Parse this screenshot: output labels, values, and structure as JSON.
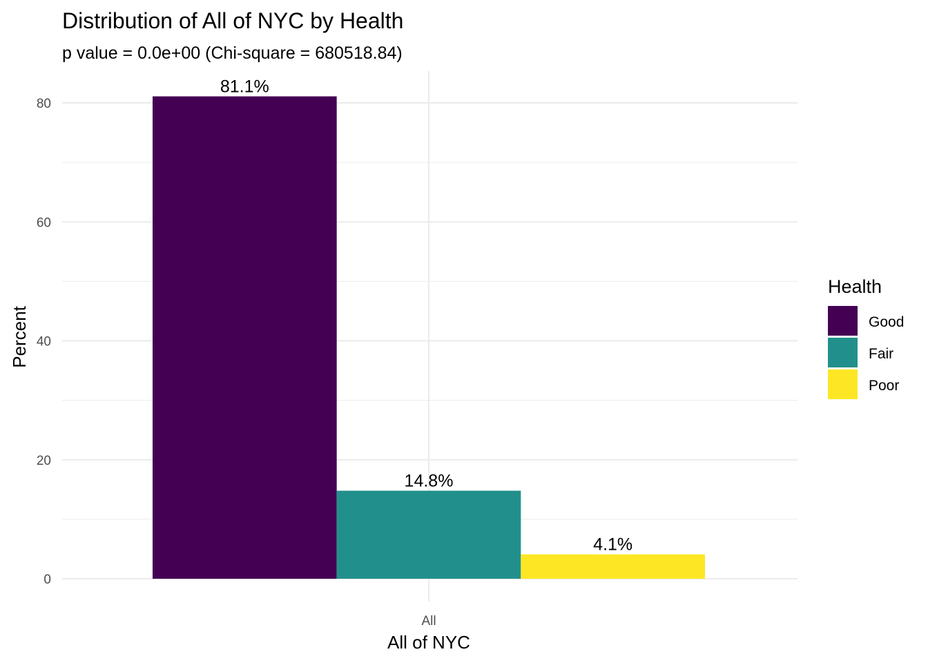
{
  "chart_data": {
    "type": "bar",
    "title": "Distribution of All of NYC by Health",
    "subtitle": "p value = 0.0e+00 (Chi-square = 680518.84)",
    "xlabel": "All of NYC",
    "ylabel": "Percent",
    "categories": [
      "All"
    ],
    "series": [
      {
        "name": "Good",
        "values": [
          81.1
        ],
        "label": "81.1%",
        "color": "#440154"
      },
      {
        "name": "Fair",
        "values": [
          14.8
        ],
        "label": "14.8%",
        "color": "#21908C"
      },
      {
        "name": "Poor",
        "values": [
          4.1
        ],
        "label": "4.1%",
        "color": "#FDE725"
      }
    ],
    "ylim": [
      0,
      85.5
    ],
    "yticks": [
      0,
      20,
      40,
      60,
      80
    ],
    "grid": true,
    "legend": {
      "title": "Health",
      "position": "right"
    }
  }
}
